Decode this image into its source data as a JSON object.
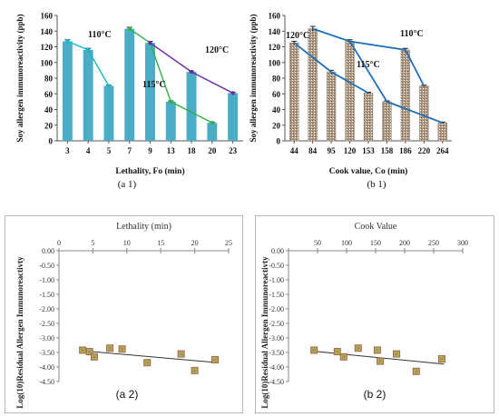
{
  "chart_data": [
    {
      "id": "a1",
      "type": "bar",
      "caption": "(a 1)",
      "xlabel": "Lethality, Fo (min)",
      "ylabel": "Soy allergen immunoreactivity (ppb)",
      "ylim": [
        0,
        160
      ],
      "yticks": [
        0,
        20,
        40,
        60,
        80,
        100,
        120,
        140,
        160
      ],
      "grid": false,
      "bar_color": "#4bacc6",
      "categories": [
        "3",
        "4",
        "5",
        "7",
        "9",
        "13",
        "18",
        "20",
        "23"
      ],
      "values": [
        127,
        116,
        70,
        143,
        125,
        50,
        88,
        23,
        61
      ],
      "errors": [
        2,
        2,
        1,
        2,
        2,
        1,
        1,
        1,
        1
      ],
      "trend_lines": [
        {
          "label": "110°C",
          "color": "#1ab8c4",
          "indices": [
            0,
            1,
            2
          ]
        },
        {
          "label": "115°C",
          "color": "#2fb04a",
          "indices": [
            3,
            4,
            5,
            7
          ]
        },
        {
          "label": "120°C",
          "color": "#6a2ca0",
          "indices": [
            4,
            6,
            8
          ]
        }
      ]
    },
    {
      "id": "b1",
      "type": "bar",
      "caption": "(b 1)",
      "xlabel": "Cook value, Co (min)",
      "ylabel": "Soy allergen immunoreactivity (ppb)",
      "ylim": [
        0,
        160
      ],
      "yticks": [
        0,
        20,
        40,
        60,
        80,
        100,
        120,
        140,
        160
      ],
      "grid": false,
      "bar_color": "#b09a84",
      "categories": [
        "44",
        "84",
        "95",
        "120",
        "153",
        "158",
        "186",
        "220",
        "264"
      ],
      "values": [
        125,
        143,
        88,
        127,
        61,
        50,
        116,
        70,
        23
      ],
      "errors": [
        2,
        3,
        2,
        2,
        1,
        1,
        2,
        1,
        1
      ],
      "trend_lines": [
        {
          "label": "120°C",
          "color": "#1f6fb8",
          "indices": [
            0,
            2,
            4
          ]
        },
        {
          "label": "115°C",
          "color": "#1f6fb8",
          "indices": [
            1,
            3,
            5,
            8
          ]
        },
        {
          "label": "110°C",
          "color": "#1f6fb8",
          "indices": [
            3,
            6,
            7
          ]
        }
      ]
    },
    {
      "id": "a2",
      "type": "scatter",
      "caption": "(a 2)",
      "title": "Lethality (min)",
      "ylabel": "Log(10)Residual Allergen Immunoreactivty",
      "xlim": [
        0,
        25
      ],
      "xticks": [
        0,
        5,
        10,
        15,
        20,
        25
      ],
      "ylim": [
        -4.5,
        0
      ],
      "yticks": [
        "0.00",
        "-0.50",
        "-1.00",
        "-1.50",
        "-2.00",
        "-2.50",
        "-3.00",
        "-3.50",
        "-4.00",
        "-4.50"
      ],
      "points": [
        {
          "x": 3.5,
          "y": -3.42
        },
        {
          "x": 4.5,
          "y": -3.47
        },
        {
          "x": 5.2,
          "y": -3.65
        },
        {
          "x": 7.5,
          "y": -3.35
        },
        {
          "x": 9.3,
          "y": -3.38
        },
        {
          "x": 13.0,
          "y": -3.85
        },
        {
          "x": 18.0,
          "y": -3.55
        },
        {
          "x": 20.0,
          "y": -4.12
        },
        {
          "x": 23.0,
          "y": -3.75
        }
      ],
      "trend": {
        "x0": 3.0,
        "y0": -3.43,
        "x1": 23.5,
        "y1": -3.85
      }
    },
    {
      "id": "b2",
      "type": "scatter",
      "caption": "(b 2)",
      "title": "Cook Value",
      "ylabel": "Log(10)Residual Allergen Immunoreactivty",
      "xlim": [
        0,
        300
      ],
      "xticks": [
        0,
        100,
        200,
        300
      ],
      "xtick_labels": [
        "",
        "100",
        "200",
        "300"
      ],
      "extra_xticks": [
        {
          "x": 50,
          "label": "50"
        },
        {
          "x": 150,
          "label": "150"
        },
        {
          "x": 250,
          "label": "250"
        }
      ],
      "ylim": [
        -4.5,
        0
      ],
      "yticks": [
        "0.00",
        "-0.50",
        "-1.00",
        "-1.50",
        "-2.00",
        "-2.50",
        "-3.00",
        "-3.50",
        "-4.00",
        "-4.50"
      ],
      "points": [
        {
          "x": 44,
          "y": -3.42
        },
        {
          "x": 84,
          "y": -3.47
        },
        {
          "x": 95,
          "y": -3.65
        },
        {
          "x": 120,
          "y": -3.35
        },
        {
          "x": 153,
          "y": -3.42
        },
        {
          "x": 158,
          "y": -3.8
        },
        {
          "x": 186,
          "y": -3.55
        },
        {
          "x": 220,
          "y": -4.15
        },
        {
          "x": 264,
          "y": -3.72
        }
      ],
      "trend": {
        "x0": 40,
        "y0": -3.45,
        "x1": 268,
        "y1": -3.9
      }
    }
  ]
}
